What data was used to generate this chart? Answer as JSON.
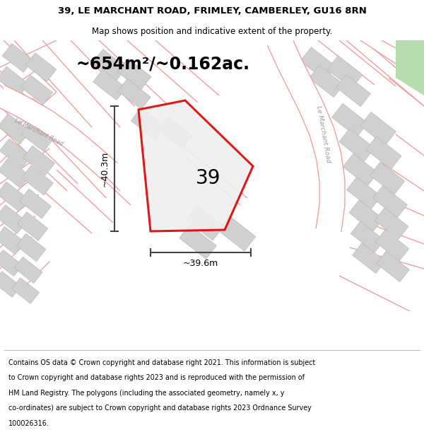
{
  "title_line1": "39, LE MARCHANT ROAD, FRIMLEY, CAMBERLEY, GU16 8RN",
  "title_line2": "Map shows position and indicative extent of the property.",
  "area_label": "~654m²/~0.162ac.",
  "plot_number": "39",
  "width_label": "~39.6m",
  "height_label": "~40.3m",
  "footer_lines": [
    "Contains OS data © Crown copyright and database right 2021. This information is subject",
    "to Crown copyright and database rights 2023 and is reproduced with the permission of",
    "HM Land Registry. The polygons (including the associated geometry, namely x, y",
    "co-ordinates) are subject to Crown copyright and database rights 2023 Ordnance Survey",
    "100026316."
  ],
  "map_bg": "#efefef",
  "road_color": "#f0a0a0",
  "plot_edge_color": "#dd0000",
  "plot_fill": "#efefef",
  "building_color": "#d0d0d0",
  "building_edge": "#bbbbbb",
  "dim_color": "#444444",
  "green_color": "#b8ddb0",
  "road_fill": "#ffffff",
  "road_label_color": "#999999",
  "white": "#ffffff"
}
